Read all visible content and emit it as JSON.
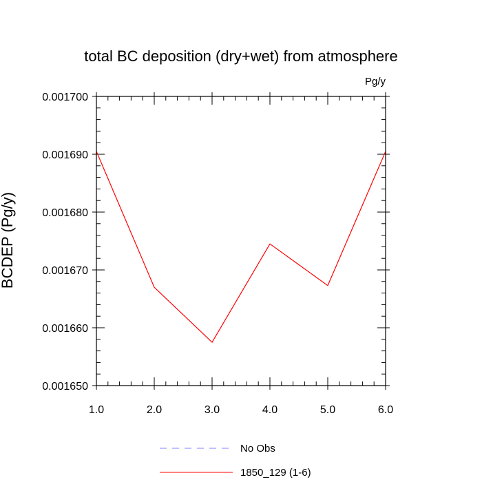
{
  "chart_data": {
    "type": "line",
    "title": "total BC deposition (dry+wet) from atmosphere",
    "units": "Pg/y",
    "ylabel": "BCDEP  (Pg/y)",
    "xlabel": "",
    "xlim": [
      1.0,
      6.0
    ],
    "ylim": [
      0.00165,
      0.0017
    ],
    "x_ticks": [
      "1.0",
      "2.0",
      "3.0",
      "4.0",
      "5.0",
      "6.0"
    ],
    "y_ticks": [
      "0.001650",
      "0.001660",
      "0.001670",
      "0.001680",
      "0.001690",
      "0.001700"
    ],
    "x": [
      1,
      2,
      3,
      4,
      5,
      6
    ],
    "series": [
      {
        "name": "1850_129 (1-6)",
        "color": "#ff0000",
        "dash": "solid",
        "values": [
          0.0016905,
          0.001667,
          0.0016575,
          0.0016745,
          0.0016673,
          0.0016905
        ]
      }
    ],
    "legend": [
      {
        "label": "No Obs",
        "color": "#8080ff",
        "dash": "dashed"
      },
      {
        "label": "1850_129 (1-6)",
        "color": "#ff0000",
        "dash": "solid"
      }
    ],
    "legend_position": "bottom",
    "grid": false
  }
}
